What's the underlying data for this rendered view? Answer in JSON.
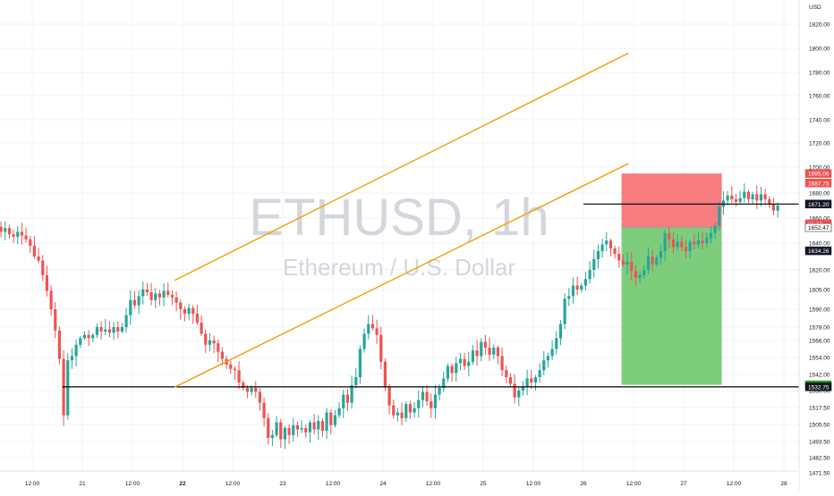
{
  "chart_data": {
    "type": "candlestick",
    "watermark": {
      "symbol": "ETHUSD, 1h",
      "description": "Ethereum / U.S. Dollar"
    },
    "currency": "USD",
    "colors": {
      "up": "#26a69a",
      "down": "#ef5350",
      "channel": "#f59d00",
      "level_line": "#000000",
      "stop_zone": "#f77c80",
      "target_zone": "#7dcd7d",
      "grid": "#f0f3fa",
      "axis_text": "#131722",
      "watermark": "#d3d6dc"
    },
    "y_axis": {
      "ticks": [
        "1820.00",
        "1800.00",
        "1780.00",
        "1760.00",
        "1740.00",
        "1720.00",
        "1700.00",
        "1680.00",
        "1660.00",
        "1640.00",
        "1620.00",
        "1605.00",
        "1590.00",
        "1578.00",
        "1566.00",
        "1554.00",
        "1542.00",
        "1530.00",
        "1517.50",
        "1505.50",
        "1493.50",
        "1482.50",
        "1471.50"
      ]
    },
    "x_axis": {
      "ticks": [
        "12:00",
        "21",
        "12:00",
        "22",
        "12:00",
        "23",
        "12:00",
        "24",
        "12:00",
        "25",
        "12:00",
        "26",
        "12:00",
        "27",
        "12:00",
        "28"
      ],
      "bold": [
        "22"
      ]
    },
    "price_labels": [
      {
        "text": "1695.06",
        "value": 1695.06,
        "bg": "#ef5350",
        "fg": "#ffffff"
      },
      {
        "text": "1687.75",
        "value": 1687.75,
        "bg": "#ef5350",
        "fg": "#ffffff"
      },
      {
        "text": "1671.20",
        "value": 1671.2,
        "bg": "#131722",
        "fg": "#ffffff"
      },
      {
        "text": "21:32",
        "value": 1655.5,
        "bg": "#ef5350",
        "fg": "#ffffff"
      },
      {
        "text": "1652.47",
        "value": 1652.47,
        "bg": "#ffffff",
        "fg": "#131722"
      },
      {
        "text": "1634.26",
        "value": 1634.26,
        "bg": "#131722",
        "fg": "#ffffff"
      },
      {
        "text": "1534.28",
        "value": 1534.28,
        "bg": "#1e9e1e",
        "fg": "#ffffff"
      },
      {
        "text": "1532.75",
        "value": 1532.75,
        "bg": "#131722",
        "fg": "#ffffff"
      }
    ],
    "horizontal_levels": [
      {
        "value": 1532.75,
        "x_start": 20.8
      },
      {
        "value": 1671.2,
        "x_start": 26.0
      }
    ],
    "channel": {
      "lower": {
        "start": [
          21.92,
          1532.5
        ],
        "end": [
          26.45,
          1703
        ]
      },
      "upper": {
        "start": [
          21.92,
          1612
        ],
        "end": [
          26.45,
          1796
        ]
      }
    },
    "position": {
      "entry": 1652.47,
      "stop": 1695.06,
      "target": 1534.28,
      "x_start": 26.38,
      "x_end": 27.38
    },
    "candles": {
      "start_time": 19.98,
      "interval": 0.041667,
      "open": 1655,
      "changes": [
        -3,
        2,
        6,
        -2,
        -5,
        -4,
        3,
        -5,
        -2,
        4,
        -3,
        -3,
        -5,
        -8,
        -3,
        -11,
        -12,
        -14,
        -15,
        -22,
        -41,
        40,
        3,
        8,
        5,
        3,
        -3,
        3,
        7,
        -4,
        2,
        -3,
        5,
        -4,
        4,
        8,
        11,
        -4,
        7,
        5,
        -2,
        -6,
        5,
        -3,
        5,
        -3,
        -2,
        -4,
        -5,
        -3,
        4,
        -4,
        -6,
        -9,
        -9,
        3,
        -2,
        -6,
        -5,
        -4,
        -3,
        -1,
        -9,
        -4,
        -3,
        3,
        -3,
        -8,
        -11,
        -14,
        2,
        9,
        -12,
        8,
        -5,
        7,
        -3,
        1,
        -3,
        7,
        -5,
        6,
        -7,
        13,
        -9,
        7,
        5,
        10,
        -6,
        13,
        6,
        20,
        12,
        8,
        -3,
        -6,
        -20,
        -18,
        -14,
        -7,
        2,
        -4,
        10,
        -6,
        3,
        6,
        6,
        -7,
        -5,
        10,
        5,
        7,
        9,
        -5,
        7,
        3,
        -5,
        3,
        8,
        -4,
        10,
        -4,
        -5,
        5,
        -6,
        -10,
        -5,
        -5,
        -10,
        5,
        3,
        6,
        -3,
        4,
        5,
        7,
        3,
        5,
        8,
        12,
        18,
        2,
        8,
        -3,
        3,
        5,
        7,
        8,
        6,
        5,
        3,
        -6,
        -4,
        -5,
        -3,
        2,
        -7,
        -5,
        2,
        4,
        10,
        -6,
        5,
        5,
        14,
        -5,
        -6,
        4,
        -4,
        -3,
        7,
        -2,
        3,
        -2,
        4,
        4,
        6,
        15,
        5,
        4,
        -3,
        -2,
        3,
        5,
        -6,
        4,
        -5,
        5,
        -4,
        -4,
        -5,
        4,
        -4,
        -12,
        2,
        7,
        3,
        -6,
        -5,
        -4,
        -5,
        -5,
        -3,
        -2
      ]
    }
  }
}
